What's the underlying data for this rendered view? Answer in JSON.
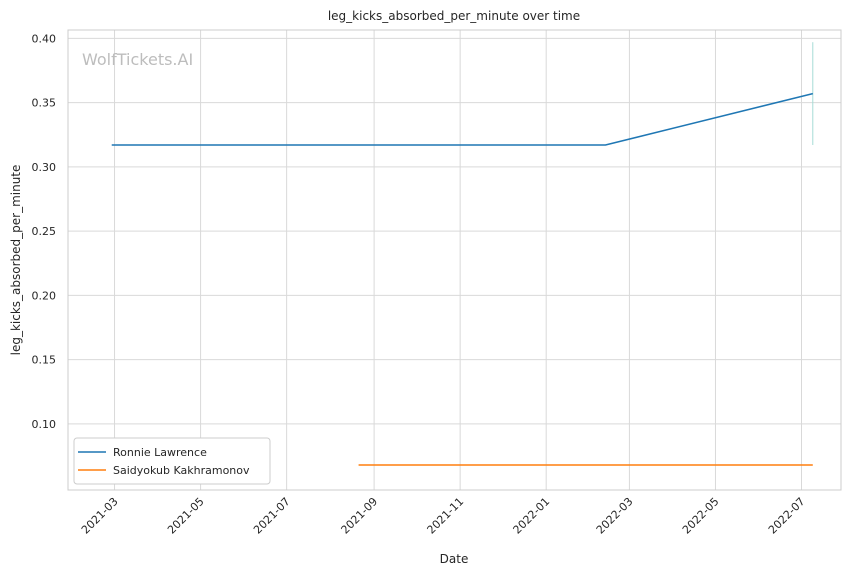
{
  "chart_data": {
    "type": "line",
    "title": "leg_kicks_absorbed_per_minute over time",
    "xlabel": "Date",
    "ylabel": "leg_kicks_absorbed_per_minute",
    "watermark": "WolfTickets.AI",
    "grid": true,
    "legend_position": "lower-left",
    "x_ticks": [
      "2021-03",
      "2021-05",
      "2021-07",
      "2021-09",
      "2021-11",
      "2022-01",
      "2022-03",
      "2022-05",
      "2022-07"
    ],
    "y_ticks": [
      "0.10",
      "0.15",
      "0.20",
      "0.25",
      "0.30",
      "0.35",
      "0.40"
    ],
    "xlim": [
      "2021-01-27",
      "2022-07-29"
    ],
    "ylim": [
      0.0485,
      0.4065
    ],
    "series": [
      {
        "name": "Ronnie Lawrence",
        "color": "#1f77b4",
        "x": [
          "2021-02-27",
          "2022-02-12",
          "2022-07-09"
        ],
        "y": [
          0.317,
          0.317,
          0.357
        ]
      },
      {
        "name": "Saidyokub Kakhramonov",
        "color": "#ff7f0e",
        "x": [
          "2021-08-21",
          "2022-07-09"
        ],
        "y": [
          0.068,
          0.068
        ]
      }
    ],
    "band": {
      "color": "#a6dcd6",
      "x": "2022-07-09",
      "y": [
        0.317,
        0.397
      ]
    }
  }
}
